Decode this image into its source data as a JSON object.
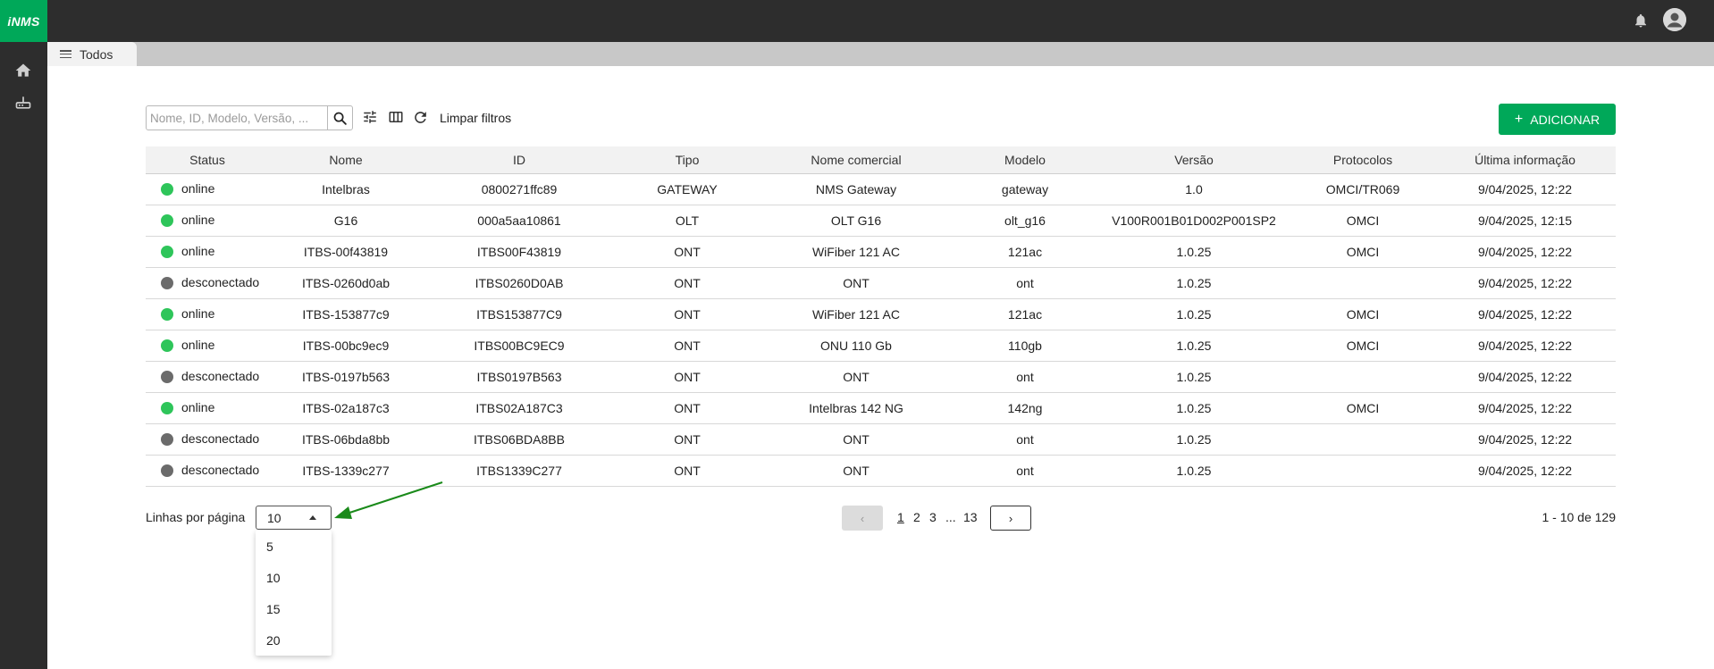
{
  "app": {
    "logo": "iNMS"
  },
  "tabs": [
    {
      "label": "Todos"
    }
  ],
  "search": {
    "placeholder": "Nome, ID, Modelo, Versão, ...",
    "value": ""
  },
  "toolbar": {
    "clear_filters": "Limpar filtros",
    "add_label": "ADICIONAR",
    "add_plus": "+"
  },
  "table": {
    "headers": [
      "Status",
      "Nome",
      "ID",
      "Tipo",
      "Nome comercial",
      "Modelo",
      "Versão",
      "Protocolos",
      "Última informação"
    ],
    "rows": [
      {
        "status": "online",
        "nome": "Intelbras",
        "id": "0800271ffc89",
        "tipo": "GATEWAY",
        "comercial": "NMS Gateway",
        "modelo": "gateway",
        "versao": "1.0",
        "protocolos": "OMCI/TR069",
        "ultima": "9/04/2025, 12:22"
      },
      {
        "status": "online",
        "nome": "G16",
        "id": "000a5aa10861",
        "tipo": "OLT",
        "comercial": "OLT G16",
        "modelo": "olt_g16",
        "versao": "V100R001B01D002P001SP2",
        "protocolos": "OMCI",
        "ultima": "9/04/2025, 12:15"
      },
      {
        "status": "online",
        "nome": "ITBS-00f43819",
        "id": "ITBS00F43819",
        "tipo": "ONT",
        "comercial": "WiFiber 121 AC",
        "modelo": "121ac",
        "versao": "1.0.25",
        "protocolos": "OMCI",
        "ultima": "9/04/2025, 12:22"
      },
      {
        "status": "desconectado",
        "nome": "ITBS-0260d0ab",
        "id": "ITBS0260D0AB",
        "tipo": "ONT",
        "comercial": "ONT",
        "modelo": "ont",
        "versao": "1.0.25",
        "protocolos": "",
        "ultima": "9/04/2025, 12:22"
      },
      {
        "status": "online",
        "nome": "ITBS-153877c9",
        "id": "ITBS153877C9",
        "tipo": "ONT",
        "comercial": "WiFiber 121 AC",
        "modelo": "121ac",
        "versao": "1.0.25",
        "protocolos": "OMCI",
        "ultima": "9/04/2025, 12:22"
      },
      {
        "status": "online",
        "nome": "ITBS-00bc9ec9",
        "id": "ITBS00BC9EC9",
        "tipo": "ONT",
        "comercial": "ONU 110 Gb",
        "modelo": "110gb",
        "versao": "1.0.25",
        "protocolos": "OMCI",
        "ultima": "9/04/2025, 12:22"
      },
      {
        "status": "desconectado",
        "nome": "ITBS-0197b563",
        "id": "ITBS0197B563",
        "tipo": "ONT",
        "comercial": "ONT",
        "modelo": "ont",
        "versao": "1.0.25",
        "protocolos": "",
        "ultima": "9/04/2025, 12:22"
      },
      {
        "status": "online",
        "nome": "ITBS-02a187c3",
        "id": "ITBS02A187C3",
        "tipo": "ONT",
        "comercial": "Intelbras 142 NG",
        "modelo": "142ng",
        "versao": "1.0.25",
        "protocolos": "OMCI",
        "ultima": "9/04/2025, 12:22"
      },
      {
        "status": "desconectado",
        "nome": "ITBS-06bda8bb",
        "id": "ITBS06BDA8BB",
        "tipo": "ONT",
        "comercial": "ONT",
        "modelo": "ont",
        "versao": "1.0.25",
        "protocolos": "",
        "ultima": "9/04/2025, 12:22"
      },
      {
        "status": "desconectado",
        "nome": "ITBS-1339c277",
        "id": "ITBS1339C277",
        "tipo": "ONT",
        "comercial": "ONT",
        "modelo": "ont",
        "versao": "1.0.25",
        "protocolos": "",
        "ultima": "9/04/2025, 12:22"
      }
    ]
  },
  "pagination": {
    "rows_label": "Linhas por página",
    "rows_selected": "10",
    "rows_options": [
      "5",
      "10",
      "15",
      "20"
    ],
    "pages": [
      "1",
      "2",
      "3",
      "...",
      "13"
    ],
    "current_page": "1",
    "prev_glyph": "‹",
    "next_glyph": "›",
    "range": "1 - 10 de 129"
  },
  "colors": {
    "brand": "#00a859",
    "online": "#2ec55a",
    "offline": "#6b6b6b",
    "topbar": "#2d2d2d",
    "annotation": "#1a8a1a"
  },
  "icons": [
    "bell-icon",
    "user-avatar-icon",
    "home-icon",
    "router-icon",
    "menu-icon",
    "search-icon",
    "filter-sliders-icon",
    "columns-icon",
    "refresh-icon",
    "chevron-left-icon",
    "chevron-right-icon",
    "caret-up-icon",
    "arrow-annotation"
  ]
}
